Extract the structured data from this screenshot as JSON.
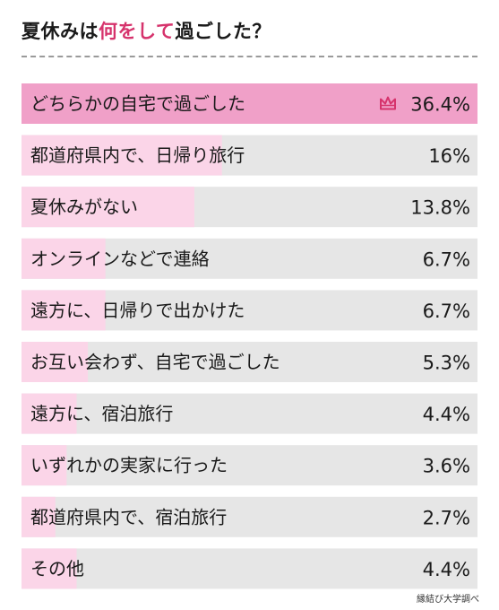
{
  "header": {
    "title_part1": "夏休みは",
    "title_highlight": "何をして",
    "title_part2": "過ごした？"
  },
  "source": "縁結び大学調べ",
  "colors": {
    "track": "#e6e6e6",
    "bar_top": "#f0a0c8",
    "bar": "#fbd5e8",
    "accent": "#d6336c",
    "crown": "#d6336c"
  },
  "icons": {
    "top_marker": "crown-icon"
  },
  "chart_data": {
    "type": "bar",
    "orientation": "horizontal",
    "title": "夏休みは何をして過ごした？",
    "unit": "%",
    "xlim": [
      0,
      36.4
    ],
    "categories": [
      "どちらかの自宅で過ごした",
      "都道府県内で、日帰り旅行",
      "夏休みがない",
      "オンラインなどで連絡",
      "遠方に、日帰りで出かけた",
      "お互い会わず、自宅で過ごした",
      "遠方に、宿泊旅行",
      "いずれかの実家に行った",
      "都道府県内で、宿泊旅行",
      "その他"
    ],
    "values": [
      36.4,
      16,
      13.8,
      6.7,
      6.7,
      5.3,
      4.4,
      3.6,
      2.7,
      4.4
    ],
    "value_labels": [
      "36.4%",
      "16%",
      "13.8%",
      "6.7%",
      "6.7%",
      "5.3%",
      "4.4%",
      "3.6%",
      "2.7%",
      "4.4%"
    ]
  }
}
